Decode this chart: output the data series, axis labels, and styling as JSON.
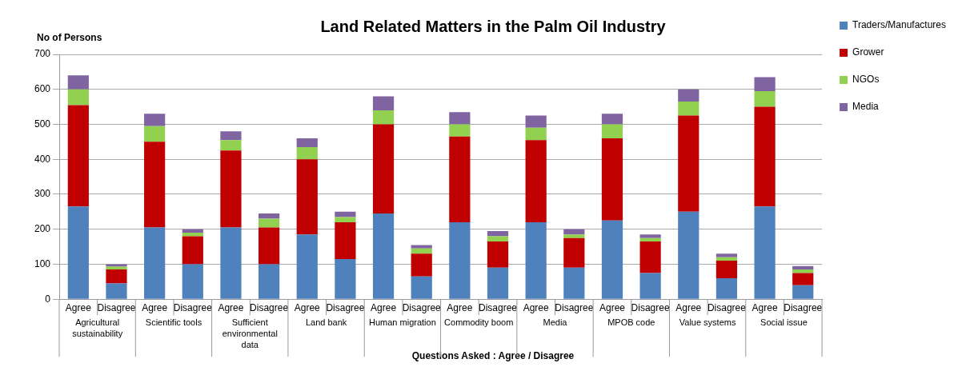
{
  "chart_data": {
    "type": "bar",
    "title": "Land Related Matters in the Palm Oil Industry",
    "xlabel": "Questions Asked : Agree / Disagree",
    "ylabel": "No of Persons",
    "categories": [
      "Agree",
      "Disagree",
      "Agree",
      "Disagree",
      "Agree",
      "Disagree",
      "Agree",
      "Disagree",
      "Agree",
      "Disagree",
      "Agree",
      "Disagree",
      "Agree",
      "Disagree",
      "Agree",
      "Disagree",
      "Agree",
      "Disagree",
      "Agree",
      "Disagree"
    ],
    "annotations": [
      "Agricultural sustainability",
      "Scientific tools",
      "Sufficient environmental data",
      "Land bank",
      "Human migration",
      "Commodity boom",
      "Media",
      "MPOB code",
      "Value systems",
      "Social issue"
    ],
    "stacked": true,
    "ylim": [
      0,
      700
    ],
    "yticks": [
      0,
      100,
      200,
      300,
      400,
      500,
      600,
      700
    ],
    "grid": "y",
    "legend": "top right",
    "series": [
      {
        "name": "Traders/Manufactures",
        "color": "#4f81bd",
        "values": [
          265,
          45,
          205,
          100,
          205,
          100,
          185,
          115,
          245,
          65,
          220,
          90,
          220,
          90,
          225,
          75,
          250,
          60,
          265,
          40
        ]
      },
      {
        "name": "Grower",
        "color": "#c00000",
        "values": [
          290,
          40,
          245,
          80,
          220,
          105,
          215,
          105,
          255,
          65,
          245,
          75,
          235,
          85,
          235,
          90,
          275,
          50,
          285,
          35
        ]
      },
      {
        "name": "NGOs",
        "color": "#92d050",
        "values": [
          45,
          8,
          45,
          10,
          30,
          25,
          35,
          15,
          40,
          15,
          35,
          15,
          35,
          10,
          40,
          10,
          40,
          10,
          45,
          10
        ]
      },
      {
        "name": "Media",
        "color": "#8064a2",
        "values": [
          40,
          7,
          35,
          10,
          25,
          15,
          25,
          15,
          40,
          10,
          35,
          15,
          35,
          15,
          30,
          10,
          35,
          10,
          40,
          10
        ]
      }
    ]
  }
}
